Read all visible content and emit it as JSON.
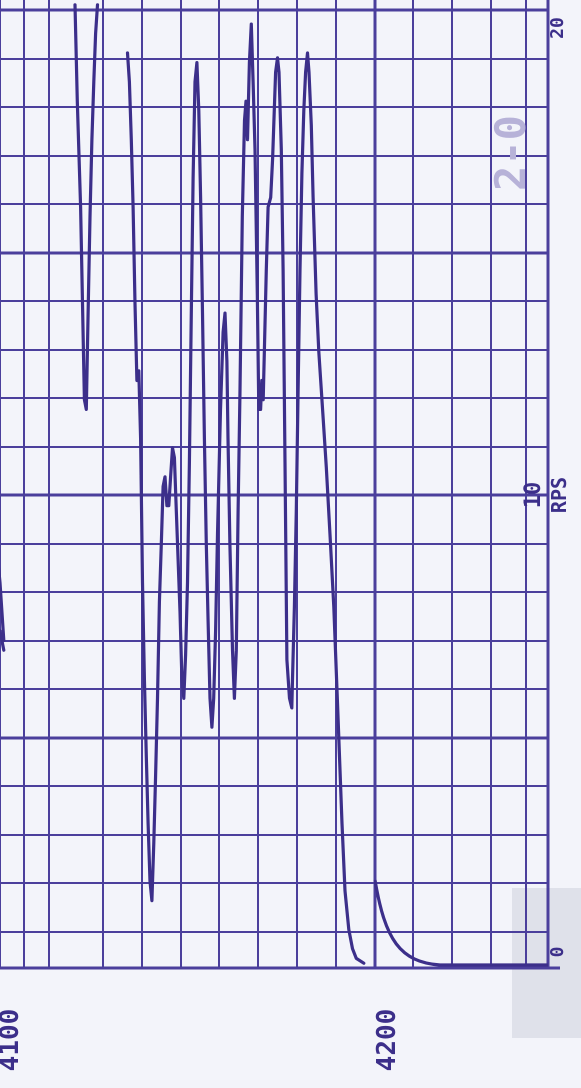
{
  "colors": {
    "background": "#f3f4fa",
    "grid": "#4b3f9c",
    "trace": "#3c2f8a",
    "stamp": "#b9bccb"
  },
  "chart_data": {
    "type": "line",
    "orientation": "rotated-90",
    "grid": true,
    "value_tick_labels": [
      "0",
      "10",
      "20"
    ],
    "value_axis_caption": "RPS",
    "position_tick_labels": [
      "4100",
      "4200"
    ],
    "handwritten_annotation": "2-0",
    "position_range": [
      4100,
      4200
    ],
    "value_range": [
      0,
      20
    ],
    "series": [
      {
        "points": [
          [
            4197.0,
            0.1
          ],
          [
            4195.0,
            0.2
          ],
          [
            4194.0,
            0.4
          ],
          [
            4193.0,
            0.8
          ],
          [
            4192.0,
            1.6
          ],
          [
            4191.2,
            3.0
          ],
          [
            4190.0,
            5.5
          ],
          [
            4189.0,
            7.5
          ],
          [
            4188.0,
            9.0
          ],
          [
            4187.0,
            10.4
          ],
          [
            4186.2,
            11.4
          ],
          [
            4185.0,
            12.8
          ],
          [
            4184.3,
            14.0
          ],
          [
            4183.5,
            16.0
          ],
          [
            4183.0,
            17.5
          ],
          [
            4182.4,
            18.6
          ],
          [
            4182.0,
            19.0
          ],
          [
            4181.5,
            18.6
          ],
          [
            4181.0,
            17.8
          ],
          [
            4180.5,
            16.5
          ],
          [
            4180.0,
            14.5
          ],
          [
            4179.5,
            12.0
          ],
          [
            4179.0,
            9.5
          ],
          [
            4178.5,
            7.5
          ],
          [
            4178.0,
            6.0
          ],
          [
            4177.8,
            5.4
          ],
          [
            4177.2,
            5.6
          ],
          [
            4176.5,
            6.4
          ],
          [
            4176.0,
            10.5
          ],
          [
            4175.5,
            14.5
          ],
          [
            4175.0,
            17.0
          ],
          [
            4174.4,
            18.6
          ],
          [
            4174.0,
            18.9
          ],
          [
            4173.5,
            18.6
          ],
          [
            4172.7,
            16.8
          ],
          [
            4172.2,
            16.0
          ],
          [
            4171.5,
            15.8
          ],
          [
            4171.0,
            14.5
          ],
          [
            4170.2,
            11.8
          ],
          [
            4169.8,
            12.2
          ],
          [
            4169.5,
            11.6
          ],
          [
            4169.0,
            11.6
          ],
          [
            4168.6,
            14.0
          ],
          [
            4168.0,
            17.0
          ],
          [
            4167.5,
            18.4
          ],
          [
            4167.0,
            19.6
          ],
          [
            4166.5,
            18.8
          ],
          [
            4166.0,
            17.2
          ],
          [
            4165.6,
            18.0
          ],
          [
            4165.2,
            17.6
          ],
          [
            4164.6,
            15.6
          ],
          [
            4164.0,
            12.0
          ],
          [
            4163.5,
            9.5
          ],
          [
            4163.0,
            6.6
          ],
          [
            4162.5,
            5.6
          ],
          [
            4162.0,
            6.6
          ],
          [
            4161.3,
            8.8
          ],
          [
            4160.8,
            11.0
          ],
          [
            4160.5,
            12.6
          ],
          [
            4160.0,
            13.6
          ],
          [
            4159.5,
            13.2
          ],
          [
            4158.8,
            11.6
          ],
          [
            4158.0,
            9.0
          ],
          [
            4157.5,
            7.0
          ],
          [
            4157.0,
            5.6
          ],
          [
            4156.5,
            5.0
          ],
          [
            4156.0,
            5.6
          ],
          [
            4155.5,
            7.2
          ],
          [
            4155.0,
            8.8
          ],
          [
            4154.5,
            11.0
          ],
          [
            4154.0,
            13.6
          ],
          [
            4153.5,
            16.0
          ],
          [
            4153.0,
            17.8
          ],
          [
            4152.5,
            18.8
          ],
          [
            4152.0,
            18.4
          ],
          [
            4151.5,
            16.4
          ],
          [
            4151.0,
            13.6
          ],
          [
            4150.5,
            10.5
          ],
          [
            4150.0,
            8.0
          ],
          [
            4149.5,
            6.5
          ],
          [
            4149.0,
            5.6
          ],
          [
            4148.5,
            6.0
          ],
          [
            4148.0,
            7.4
          ],
          [
            4147.0,
            9.5
          ],
          [
            4146.5,
            10.6
          ],
          [
            4146.0,
            10.8
          ],
          [
            4145.5,
            10.2
          ],
          [
            4145.0,
            9.6
          ],
          [
            4144.5,
            9.6
          ],
          [
            4144.0,
            10.2
          ],
          [
            4143.5,
            10.0
          ],
          [
            4143.0,
            8.8
          ],
          [
            4142.5,
            7.6
          ],
          [
            4142.0,
            5.6
          ],
          [
            4141.5,
            4.0
          ],
          [
            4141.0,
            2.6
          ],
          [
            4140.5,
            1.4
          ],
          [
            4140.0,
            1.8
          ],
          [
            4139.5,
            3.0
          ],
          [
            4139.0,
            4.4
          ],
          [
            4138.5,
            6.0
          ],
          [
            4138.0,
            8.0
          ],
          [
            4137.5,
            11.0
          ],
          [
            4137.0,
            12.4
          ],
          [
            4136.5,
            12.2
          ],
          [
            4136.0,
            13.8
          ],
          [
            4135.5,
            15.8
          ],
          [
            4135.0,
            17.2
          ],
          [
            4134.5,
            18.4
          ],
          [
            4134.0,
            19.0
          ]
        ]
      },
      {
        "points": [
          [
            4120.0,
            20.0
          ],
          [
            4120.6,
            18.0
          ],
          [
            4121.0,
            17.0
          ],
          [
            4121.5,
            15.8
          ],
          [
            4122.0,
            13.8
          ],
          [
            4122.5,
            11.8
          ],
          [
            4123.0,
            11.6
          ],
          [
            4123.5,
            13.6
          ],
          [
            4124.0,
            15.6
          ],
          [
            4124.5,
            17.2
          ],
          [
            4125.0,
            18.4
          ],
          [
            4125.5,
            19.4
          ],
          [
            4126.0,
            20.0
          ]
        ]
      },
      {
        "points": [
          [
            4094.0,
            11.4
          ],
          [
            4095.0,
            10.8
          ],
          [
            4096.0,
            10.2
          ],
          [
            4097.0,
            9.8
          ],
          [
            4098.0,
            9.4
          ],
          [
            4099.0,
            8.8
          ],
          [
            4100.0,
            8.0
          ],
          [
            4101.0,
            6.8
          ]
        ]
      },
      {
        "points": [
          [
            4101.0,
            6.6
          ],
          [
            4100.0,
            7.0
          ]
        ]
      }
    ]
  }
}
